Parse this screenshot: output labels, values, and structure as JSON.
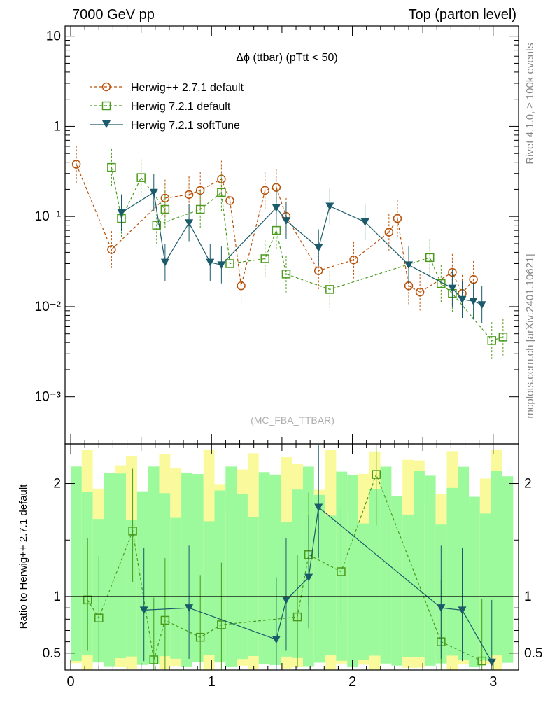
{
  "header": {
    "left": "7000 GeV pp",
    "right": "Top (parton level)"
  },
  "side_texts": {
    "rivet": "Rivet 4.1.0, ≥ 100k events",
    "mcplots": "mcplots.cern.ch [arXiv:2401.10621]"
  },
  "watermark": "(MC_FBA_TTBAR)",
  "colors": {
    "herwigpp": "#b8520a",
    "herwig721": "#4a9a1c",
    "softtune": "#1a5a6a",
    "band_inner": "#9cfa9c",
    "band_outer": "#fafa9c"
  },
  "chart_data": [
    {
      "type": "line",
      "title": "Δϕ (ttbar) (pTtt < 50)",
      "xlabel": "",
      "ylabel": "",
      "yscale": "log",
      "xlim": [
        -0.04,
        3.18
      ],
      "ylim": [
        0.0003,
        13
      ],
      "x_ticks": [
        "0",
        "1",
        "2",
        "3"
      ],
      "y_ticks": [
        "10⁻³",
        "10⁻²",
        "10⁻¹",
        "1",
        "10"
      ],
      "legend": [
        "Herwig++ 2.7.1 default",
        "Herwig 7.2.1 default",
        "Herwig 7.2.1 softTune"
      ],
      "legend_position": "top-left",
      "series": [
        {
          "name": "Herwig++ 2.7.1 default",
          "marker": "circle",
          "dashed": true,
          "x": [
            0.04,
            0.29,
            0.67,
            0.84,
            0.92,
            1.07,
            1.13,
            1.21,
            1.38,
            1.46,
            1.53,
            1.76,
            2.01,
            2.26,
            2.32,
            2.4,
            2.48,
            2.71,
            2.78,
            2.86
          ],
          "y": [
            0.38,
            0.043,
            0.16,
            0.175,
            0.195,
            0.26,
            0.15,
            0.017,
            0.195,
            0.21,
            0.1,
            0.025,
            0.033,
            0.067,
            0.095,
            0.017,
            0.0145,
            0.024,
            0.014,
            0.02
          ]
        },
        {
          "name": "Herwig 7.2.1 default",
          "marker": "square",
          "dashed": true,
          "x": [
            0.29,
            0.36,
            0.5,
            0.67,
            0.61,
            0.92,
            1.07,
            1.13,
            1.38,
            1.46,
            1.53,
            1.84,
            2.55,
            2.63,
            2.71,
            2.99,
            3.07
          ],
          "y": [
            0.35,
            0.095,
            0.27,
            0.12,
            0.08,
            0.12,
            0.185,
            0.03,
            0.034,
            0.07,
            0.023,
            0.0155,
            0.035,
            0.018,
            0.014,
            0.0042,
            0.0046
          ]
        },
        {
          "name": "Herwig 7.2.1 softTune",
          "marker": "triangle-down",
          "dashed": false,
          "x": [
            0.36,
            0.59,
            0.67,
            0.84,
            0.99,
            1.07,
            1.46,
            1.53,
            1.76,
            1.84,
            2.09,
            2.4,
            2.71,
            2.78,
            2.86,
            2.92
          ],
          "y": [
            0.11,
            0.185,
            0.031,
            0.085,
            0.031,
            0.029,
            0.125,
            0.09,
            0.045,
            0.13,
            0.087,
            0.029,
            0.016,
            0.012,
            0.0115,
            0.0105
          ]
        }
      ]
    },
    {
      "type": "line",
      "title": "",
      "xlabel": "",
      "ylabel": "Ratio to Herwig++ 2.7.1 default",
      "xlim": [
        -0.04,
        3.18
      ],
      "ylim": [
        0.35,
        2.35
      ],
      "x_ticks": [
        "0",
        "1",
        "2",
        "3"
      ],
      "y_ticks": [
        "0.5",
        "1",
        "2"
      ],
      "reference_line": 1,
      "series": [
        {
          "name": "Herwig 7.2.1 default",
          "marker": "square",
          "dashed": true,
          "x": [
            0.12,
            0.2,
            0.44,
            0.59,
            0.67,
            0.92,
            1.07,
            1.61,
            1.69,
            1.92,
            2.17,
            2.63,
            2.92
          ],
          "y": [
            0.97,
            0.81,
            1.58,
            0.44,
            0.79,
            0.64,
            0.75,
            0.82,
            1.37,
            1.22,
            2.08,
            0.6,
            0.43
          ]
        },
        {
          "name": "Herwig 7.2.1 softTune",
          "marker": "triangle-down",
          "dashed": false,
          "x": [
            0.52,
            0.84,
            1.46,
            1.53,
            1.69,
            1.76,
            2.63,
            2.78,
            2.99
          ],
          "y": [
            0.88,
            0.9,
            0.62,
            0.97,
            1.17,
            1.79,
            0.9,
            0.88,
            0.42
          ]
        }
      ]
    }
  ]
}
